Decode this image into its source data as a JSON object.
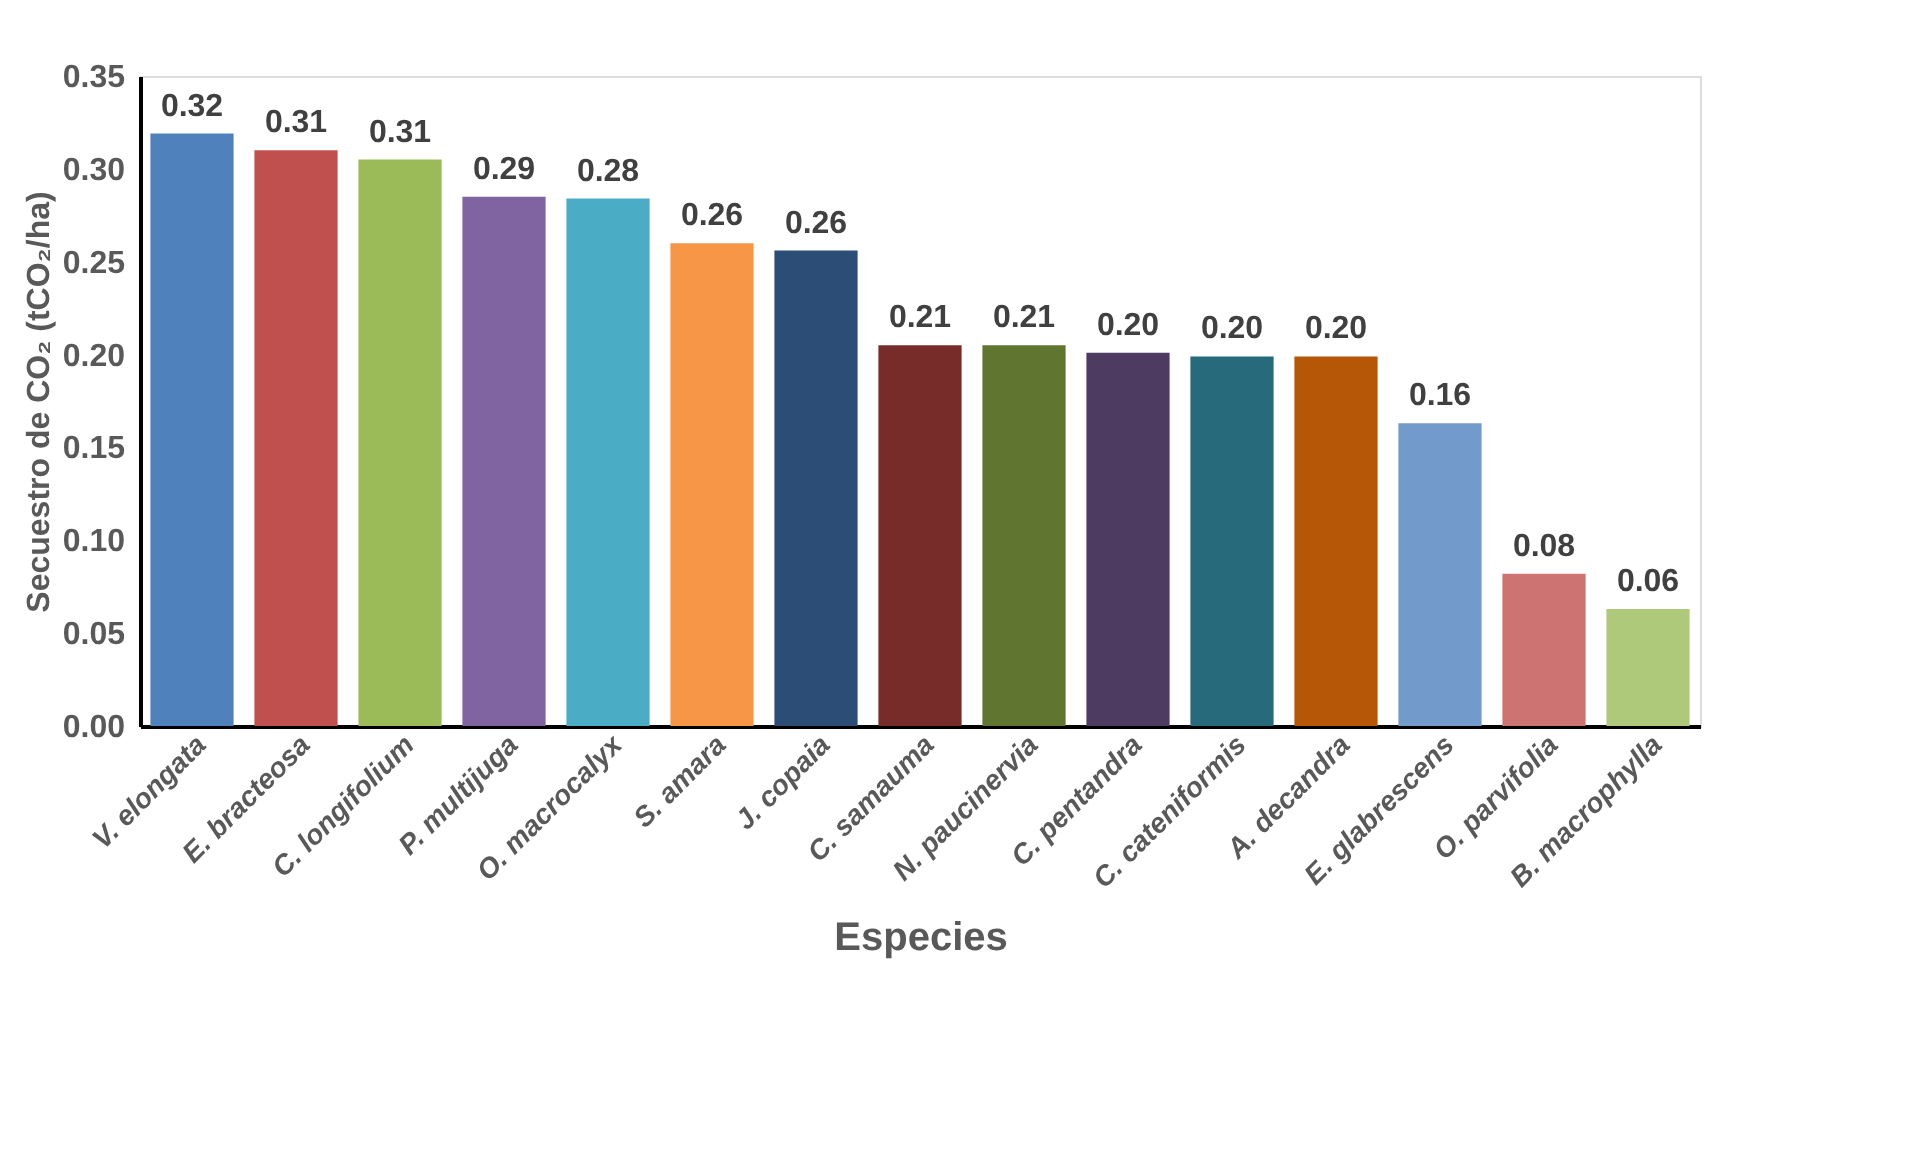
{
  "chart_data": {
    "type": "bar",
    "xlabel": "Especies",
    "ylabel": "Secuestro de CO₂ (tCO₂/ha)",
    "categories": [
      "V. elongata",
      "E. bracteosa",
      "C. longifolium",
      "P. multijuga",
      "O. macrocalyx",
      "S. amara",
      "J. copaia",
      "C. samauma",
      "N. paucinervia",
      "C. pentandra",
      "C. cateniformis",
      "A. decandra",
      "E. glabrescens",
      "O. parvifolia",
      "B. macrophylla"
    ],
    "values": [
      0.319,
      0.31,
      0.305,
      0.285,
      0.284,
      0.26,
      0.256,
      0.205,
      0.205,
      0.201,
      0.199,
      0.199,
      0.163,
      0.082,
      0.063
    ],
    "value_labels": [
      "0.32",
      "0.31",
      "0.31",
      "0.29",
      "0.28",
      "0.26",
      "0.26",
      "0.21",
      "0.21",
      "0.20",
      "0.20",
      "0.20",
      "0.16",
      "0.08",
      "0.06"
    ],
    "colors": [
      "#4f81bd",
      "#c0504d",
      "#9bbb59",
      "#8064a2",
      "#4bacc6",
      "#f79646",
      "#2c4d75",
      "#772c2a",
      "#5f7530",
      "#4d3b62",
      "#276a7c",
      "#b65708",
      "#729aca",
      "#cd7371",
      "#afc97a"
    ],
    "ylim": [
      0,
      0.35
    ],
    "yticks": [
      {
        "value": 0,
        "label": "0.00"
      },
      {
        "value": 0.05,
        "label": "0.05"
      },
      {
        "value": 0.1,
        "label": "0.10"
      },
      {
        "value": 0.15,
        "label": "0.15"
      },
      {
        "value": 0.2,
        "label": "0.20"
      },
      {
        "value": 0.25,
        "label": "0.25"
      },
      {
        "value": 0.3,
        "label": "0.30"
      },
      {
        "value": 0.35,
        "label": "0.35"
      }
    ],
    "grid": false
  }
}
